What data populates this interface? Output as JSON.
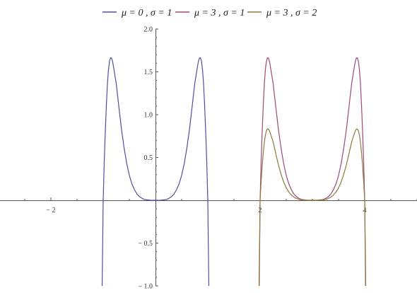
{
  "chart_data": {
    "type": "line",
    "title": "",
    "xlabel": "",
    "ylabel": "",
    "xlim": [
      -3,
      5
    ],
    "ylim": [
      -1,
      2
    ],
    "grid": false,
    "legend_position": "top-center",
    "x_ticks": [
      {
        "value": -2,
        "label": "− 2"
      },
      {
        "value": 2,
        "label": "2"
      },
      {
        "value": 4,
        "label": "4"
      }
    ],
    "y_ticks": [
      {
        "value": 2,
        "label": "2.0"
      },
      {
        "value": 1.5,
        "label": "1.5"
      },
      {
        "value": 1,
        "label": "1.0"
      },
      {
        "value": 0.5,
        "label": "0.5"
      },
      {
        "value": -0.5,
        "label": "− 0.5"
      },
      {
        "value": -1,
        "label": "− 1.0"
      }
    ],
    "series": [
      {
        "name": "μ = 0 , σ = 1",
        "color": "#4e4ea0",
        "points": [
          [
            -1.02,
            -1.0
          ],
          [
            -1.0,
            0.0
          ],
          [
            -0.98,
            0.45
          ],
          [
            -0.96,
            0.8
          ],
          [
            -0.94,
            1.1
          ],
          [
            -0.92,
            1.35
          ],
          [
            -0.9,
            1.52
          ],
          [
            -0.88,
            1.62
          ],
          [
            -0.86,
            1.664
          ],
          [
            -0.84,
            1.66
          ],
          [
            -0.82,
            1.62
          ],
          [
            -0.8,
            1.55
          ],
          [
            -0.75,
            1.36
          ],
          [
            -0.7,
            1.09
          ],
          [
            -0.65,
            0.83
          ],
          [
            -0.6,
            0.61
          ],
          [
            -0.55,
            0.43
          ],
          [
            -0.5,
            0.29
          ],
          [
            -0.45,
            0.19
          ],
          [
            -0.4,
            0.12
          ],
          [
            -0.35,
            0.07
          ],
          [
            -0.3,
            0.04
          ],
          [
            -0.25,
            0.02
          ],
          [
            -0.2,
            0.008
          ],
          [
            -0.1,
            0.001
          ],
          [
            0.0,
            0.0
          ],
          [
            0.1,
            0.001
          ],
          [
            0.2,
            0.008
          ],
          [
            0.25,
            0.02
          ],
          [
            0.3,
            0.04
          ],
          [
            0.35,
            0.07
          ],
          [
            0.4,
            0.12
          ],
          [
            0.45,
            0.19
          ],
          [
            0.5,
            0.29
          ],
          [
            0.55,
            0.43
          ],
          [
            0.6,
            0.61
          ],
          [
            0.65,
            0.83
          ],
          [
            0.7,
            1.09
          ],
          [
            0.75,
            1.36
          ],
          [
            0.8,
            1.55
          ],
          [
            0.82,
            1.62
          ],
          [
            0.84,
            1.66
          ],
          [
            0.86,
            1.664
          ],
          [
            0.88,
            1.62
          ],
          [
            0.9,
            1.52
          ],
          [
            0.92,
            1.35
          ],
          [
            0.94,
            1.1
          ],
          [
            0.96,
            0.8
          ],
          [
            0.98,
            0.45
          ],
          [
            1.0,
            0.0
          ],
          [
            1.02,
            -1.0
          ]
        ]
      },
      {
        "name": "μ = 3 , σ = 1",
        "color": "#a04878",
        "points": [
          [
            1.98,
            -1.0
          ],
          [
            2.0,
            0.0
          ],
          [
            2.02,
            0.45
          ],
          [
            2.04,
            0.8
          ],
          [
            2.06,
            1.1
          ],
          [
            2.08,
            1.35
          ],
          [
            2.1,
            1.52
          ],
          [
            2.12,
            1.62
          ],
          [
            2.14,
            1.664
          ],
          [
            2.16,
            1.66
          ],
          [
            2.18,
            1.62
          ],
          [
            2.2,
            1.55
          ],
          [
            2.25,
            1.36
          ],
          [
            2.3,
            1.09
          ],
          [
            2.35,
            0.83
          ],
          [
            2.4,
            0.61
          ],
          [
            2.45,
            0.43
          ],
          [
            2.5,
            0.29
          ],
          [
            2.55,
            0.19
          ],
          [
            2.6,
            0.12
          ],
          [
            2.65,
            0.07
          ],
          [
            2.7,
            0.04
          ],
          [
            2.75,
            0.02
          ],
          [
            2.8,
            0.008
          ],
          [
            2.9,
            0.001
          ],
          [
            3.0,
            0.0
          ],
          [
            3.1,
            0.001
          ],
          [
            3.2,
            0.008
          ],
          [
            3.25,
            0.02
          ],
          [
            3.3,
            0.04
          ],
          [
            3.35,
            0.07
          ],
          [
            3.4,
            0.12
          ],
          [
            3.45,
            0.19
          ],
          [
            3.5,
            0.29
          ],
          [
            3.55,
            0.43
          ],
          [
            3.6,
            0.61
          ],
          [
            3.65,
            0.83
          ],
          [
            3.7,
            1.09
          ],
          [
            3.75,
            1.36
          ],
          [
            3.8,
            1.55
          ],
          [
            3.82,
            1.62
          ],
          [
            3.84,
            1.66
          ],
          [
            3.86,
            1.664
          ],
          [
            3.88,
            1.62
          ],
          [
            3.9,
            1.52
          ],
          [
            3.92,
            1.35
          ],
          [
            3.94,
            1.1
          ],
          [
            3.96,
            0.8
          ],
          [
            3.98,
            0.45
          ],
          [
            4.0,
            0.0
          ],
          [
            4.02,
            -1.0
          ]
        ]
      },
      {
        "name": "μ = 3 , σ = 2",
        "color": "#8c7a3c",
        "points": [
          [
            1.985,
            -1.0
          ],
          [
            2.0,
            0.0
          ],
          [
            2.02,
            0.22
          ],
          [
            2.04,
            0.4
          ],
          [
            2.06,
            0.55
          ],
          [
            2.08,
            0.67
          ],
          [
            2.1,
            0.76
          ],
          [
            2.12,
            0.81
          ],
          [
            2.14,
            0.832
          ],
          [
            2.16,
            0.83
          ],
          [
            2.18,
            0.81
          ],
          [
            2.2,
            0.775
          ],
          [
            2.25,
            0.68
          ],
          [
            2.3,
            0.545
          ],
          [
            2.35,
            0.415
          ],
          [
            2.4,
            0.305
          ],
          [
            2.45,
            0.215
          ],
          [
            2.5,
            0.145
          ],
          [
            2.55,
            0.095
          ],
          [
            2.6,
            0.06
          ],
          [
            2.65,
            0.035
          ],
          [
            2.7,
            0.02
          ],
          [
            2.75,
            0.01
          ],
          [
            2.8,
            0.004
          ],
          [
            2.9,
            0.0005
          ],
          [
            3.0,
            0.0
          ],
          [
            3.1,
            0.0005
          ],
          [
            3.2,
            0.004
          ],
          [
            3.25,
            0.01
          ],
          [
            3.3,
            0.02
          ],
          [
            3.35,
            0.035
          ],
          [
            3.4,
            0.06
          ],
          [
            3.45,
            0.095
          ],
          [
            3.5,
            0.145
          ],
          [
            3.55,
            0.215
          ],
          [
            3.6,
            0.305
          ],
          [
            3.65,
            0.415
          ],
          [
            3.7,
            0.545
          ],
          [
            3.75,
            0.68
          ],
          [
            3.8,
            0.775
          ],
          [
            3.82,
            0.81
          ],
          [
            3.84,
            0.83
          ],
          [
            3.86,
            0.832
          ],
          [
            3.88,
            0.81
          ],
          [
            3.9,
            0.76
          ],
          [
            3.92,
            0.67
          ],
          [
            3.94,
            0.55
          ],
          [
            3.96,
            0.4
          ],
          [
            3.98,
            0.22
          ],
          [
            4.0,
            0.0
          ],
          [
            4.015,
            -1.0
          ]
        ]
      }
    ]
  }
}
